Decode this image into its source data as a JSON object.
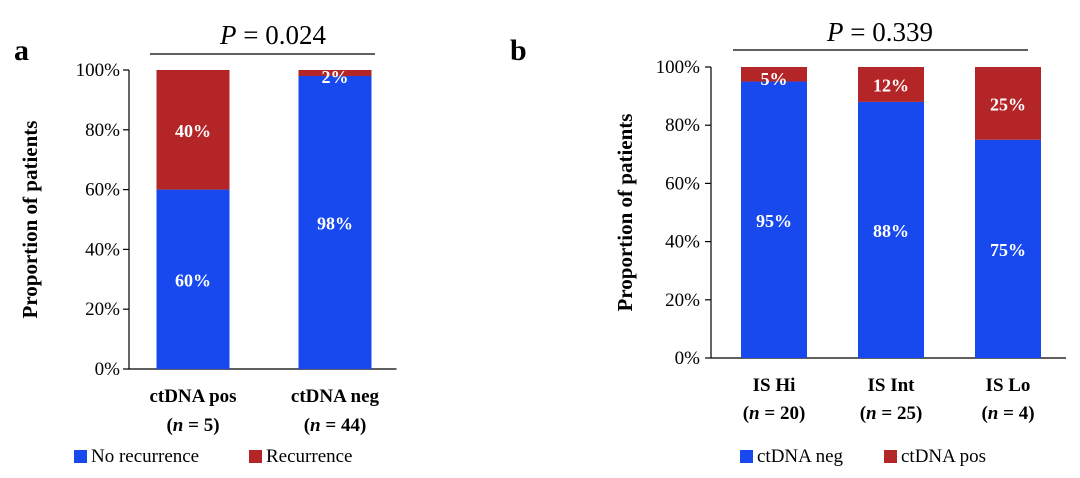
{
  "colors": {
    "blue": "#1749ee",
    "red": "#b42527"
  },
  "chart_data": [
    {
      "panel": "a",
      "type": "bar",
      "stacked": true,
      "p_prefix": "P",
      "p_value": "= 0.024",
      "ylabel": "Proportion of patients",
      "ylim": [
        0,
        100
      ],
      "yticks": [
        "0%",
        "20%",
        "40%",
        "60%",
        "80%",
        "100%"
      ],
      "categories": [
        {
          "name": "ctDNA pos",
          "n": "5"
        },
        {
          "name": "ctDNA neg",
          "n": "44"
        }
      ],
      "series": [
        {
          "name": "No recurrence",
          "color": "#1749ee",
          "values": [
            60,
            98
          ],
          "labels": [
            "60%",
            "98%"
          ]
        },
        {
          "name": "Recurrence",
          "color": "#b42527",
          "values": [
            40,
            2
          ],
          "labels": [
            "40%",
            "2%"
          ]
        }
      ]
    },
    {
      "panel": "b",
      "type": "bar",
      "stacked": true,
      "p_prefix": "P",
      "p_value": "= 0.339",
      "ylabel": "Proportion of patients",
      "ylim": [
        0,
        100
      ],
      "yticks": [
        "0%",
        "20%",
        "40%",
        "60%",
        "80%",
        "100%"
      ],
      "categories": [
        {
          "name": "IS Hi",
          "n": "20"
        },
        {
          "name": "IS Int",
          "n": "25"
        },
        {
          "name": "IS Lo",
          "n": "4"
        }
      ],
      "series": [
        {
          "name": "ctDNA neg",
          "color": "#1749ee",
          "values": [
            95,
            88,
            75
          ],
          "labels": [
            "95%",
            "88%",
            "75%"
          ]
        },
        {
          "name": "ctDNA pos",
          "color": "#b42527",
          "values": [
            5,
            12,
            25
          ],
          "labels": [
            "5%",
            "12%",
            "25%"
          ]
        }
      ]
    }
  ]
}
